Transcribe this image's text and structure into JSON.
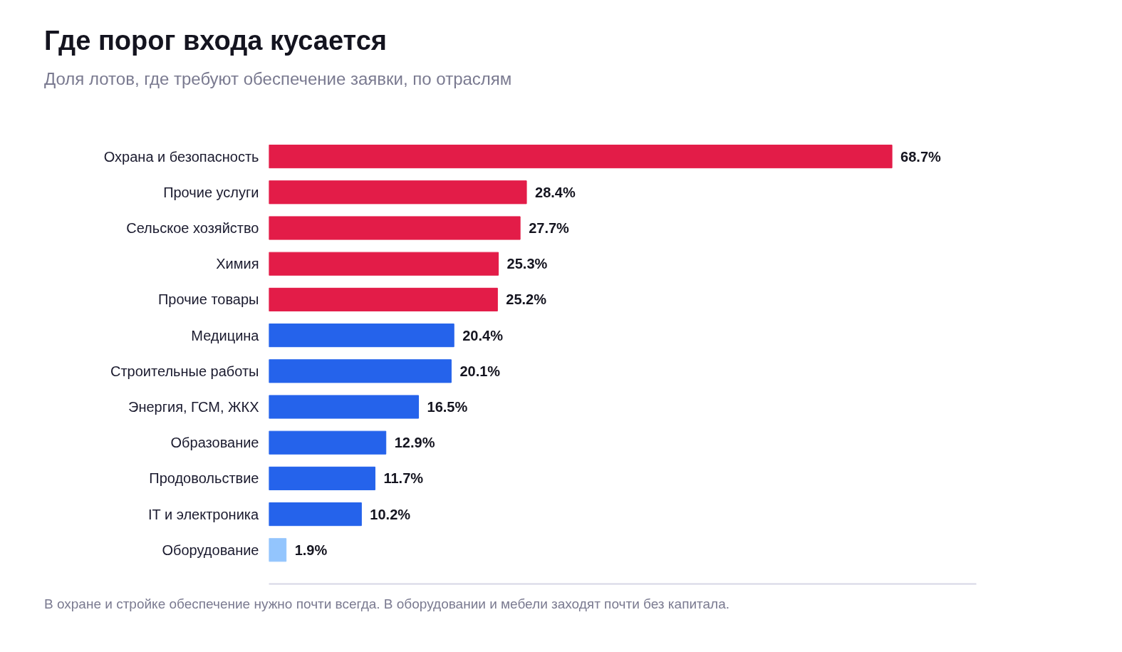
{
  "chart_data": {
    "type": "bar",
    "orientation": "horizontal",
    "title": "Где порог входа кусается",
    "subtitle": "Доля лотов, где требуют обеспечение заявки, по отраслям",
    "categories": [
      "Охрана и безопасность",
      "Прочие услуги",
      "Сельское хозяйство",
      "Химия",
      "Прочие товары",
      "Медицина",
      "Строительные работы",
      "Энергия, ГСМ, ЖКХ",
      "Образование",
      "Продовольствие",
      "IT и электроника",
      "Оборудование"
    ],
    "values": [
      68.7,
      28.4,
      27.7,
      25.3,
      25.2,
      20.4,
      20.1,
      16.5,
      12.9,
      11.7,
      10.2,
      1.9
    ],
    "value_labels": [
      "68.7%",
      "28.4%",
      "27.7%",
      "25.3%",
      "25.2%",
      "20.4%",
      "20.1%",
      "16.5%",
      "12.9%",
      "11.7%",
      "10.2%",
      "1.9%"
    ],
    "colors": [
      "#e31c48",
      "#e31c48",
      "#e31c48",
      "#e31c48",
      "#e31c48",
      "#2563eb",
      "#2563eb",
      "#2563eb",
      "#2563eb",
      "#2563eb",
      "#2563eb",
      "#93c5fd"
    ],
    "xlim": [
      0,
      78
    ],
    "tick_labels": "y",
    "grid": false,
    "annotations": [
      "В охране и стройке обеспечение нужно почти всегда. В оборудовании и мебели заходят почти без капитала."
    ]
  }
}
